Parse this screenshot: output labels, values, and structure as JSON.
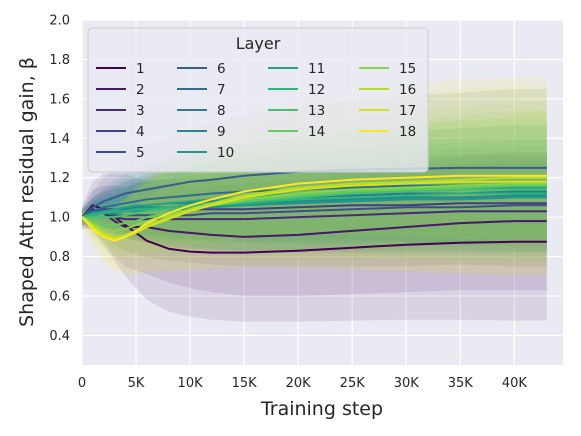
{
  "chart_data": {
    "type": "line",
    "xlabel": "Training step",
    "ylabel": "Shaped Attn residual gain, β",
    "xlim": [
      0,
      44500
    ],
    "ylim": [
      0.25,
      2.0
    ],
    "xticks": [
      0,
      5000,
      10000,
      15000,
      20000,
      25000,
      30000,
      35000,
      40000
    ],
    "xtick_labels": [
      "0",
      "5K",
      "10K",
      "15K",
      "20K",
      "25K",
      "30K",
      "35K",
      "40K"
    ],
    "yticks": [
      0.4,
      0.6,
      0.8,
      1.0,
      1.2,
      1.4,
      1.6,
      1.8,
      2.0
    ],
    "ytick_labels": [
      "0.4",
      "0.6",
      "0.8",
      "1.0",
      "1.2",
      "1.4",
      "1.6",
      "1.8",
      "2.0"
    ],
    "grid": true,
    "background": "#eaeaf2",
    "legend": {
      "title": "Layer",
      "placement": "top-left",
      "columns": 4
    },
    "x": [
      0,
      1000,
      2000,
      3000,
      4000,
      5000,
      6000,
      8000,
      10000,
      12000,
      15000,
      20000,
      25000,
      30000,
      35000,
      40000,
      43000
    ],
    "series": [
      {
        "name": "1",
        "color": "#440154",
        "values": [
          1.0,
          1.06,
          1.04,
          1.0,
          0.96,
          0.92,
          0.88,
          0.84,
          0.825,
          0.82,
          0.82,
          0.83,
          0.845,
          0.86,
          0.87,
          0.875,
          0.875
        ],
        "band": [
          0.06,
          0.12,
          0.18,
          0.22,
          0.26,
          0.28,
          0.3,
          0.32,
          0.33,
          0.34,
          0.35,
          0.36,
          0.37,
          0.38,
          0.39,
          0.4,
          0.4
        ]
      },
      {
        "name": "2",
        "color": "#481769",
        "values": [
          1.0,
          1.04,
          1.02,
          0.98,
          0.95,
          0.95,
          0.95,
          0.93,
          0.92,
          0.91,
          0.9,
          0.91,
          0.93,
          0.95,
          0.97,
          0.98,
          0.98
        ],
        "band": [
          0.05,
          0.1,
          0.14,
          0.18,
          0.2,
          0.22,
          0.24,
          0.26,
          0.28,
          0.29,
          0.3,
          0.31,
          0.32,
          0.33,
          0.34,
          0.35,
          0.35
        ]
      },
      {
        "name": "3",
        "color": "#472a7a",
        "values": [
          1.0,
          1.02,
          1.02,
          1.0,
          0.99,
          0.99,
          0.99,
          0.99,
          0.99,
          0.99,
          0.99,
          1.0,
          1.01,
          1.02,
          1.03,
          1.03,
          1.03
        ],
        "band": [
          0.04,
          0.08,
          0.11,
          0.14,
          0.16,
          0.18,
          0.19,
          0.21,
          0.22,
          0.23,
          0.24,
          0.25,
          0.26,
          0.27,
          0.27,
          0.28,
          0.28
        ]
      },
      {
        "name": "4",
        "color": "#433d84",
        "values": [
          1.0,
          1.03,
          1.04,
          1.04,
          1.04,
          1.04,
          1.04,
          1.04,
          1.04,
          1.04,
          1.04,
          1.05,
          1.06,
          1.06,
          1.07,
          1.07,
          1.07
        ],
        "band": [
          0.04,
          0.07,
          0.1,
          0.12,
          0.14,
          0.16,
          0.17,
          0.19,
          0.2,
          0.21,
          0.22,
          0.23,
          0.24,
          0.24,
          0.25,
          0.25,
          0.25
        ]
      },
      {
        "name": "5",
        "color": "#3d4e8a",
        "values": [
          1.0,
          1.02,
          1.02,
          1.01,
          1.01,
          1.01,
          1.01,
          1.01,
          1.01,
          1.02,
          1.02,
          1.03,
          1.04,
          1.05,
          1.05,
          1.06,
          1.06
        ],
        "band": [
          0.03,
          0.06,
          0.08,
          0.1,
          0.12,
          0.13,
          0.14,
          0.16,
          0.17,
          0.18,
          0.19,
          0.2,
          0.21,
          0.22,
          0.22,
          0.23,
          0.23
        ]
      },
      {
        "name": "6",
        "color": "#355e8d",
        "values": [
          1.0,
          1.05,
          1.08,
          1.1,
          1.12,
          1.13,
          1.14,
          1.16,
          1.18,
          1.19,
          1.21,
          1.23,
          1.24,
          1.245,
          1.25,
          1.25,
          1.25
        ],
        "band": [
          0.04,
          0.08,
          0.12,
          0.15,
          0.18,
          0.2,
          0.22,
          0.25,
          0.27,
          0.29,
          0.31,
          0.33,
          0.35,
          0.37,
          0.38,
          0.4,
          0.4
        ]
      },
      {
        "name": "7",
        "color": "#2e6d8e",
        "values": [
          1.0,
          1.03,
          1.05,
          1.06,
          1.07,
          1.08,
          1.09,
          1.1,
          1.11,
          1.12,
          1.13,
          1.14,
          1.15,
          1.16,
          1.16,
          1.17,
          1.17
        ],
        "band": [
          0.04,
          0.07,
          0.1,
          0.13,
          0.15,
          0.17,
          0.18,
          0.2,
          0.22,
          0.23,
          0.24,
          0.26,
          0.27,
          0.28,
          0.29,
          0.3,
          0.3
        ]
      },
      {
        "name": "8",
        "color": "#297b8e",
        "values": [
          1.0,
          1.02,
          1.03,
          1.04,
          1.05,
          1.05,
          1.06,
          1.07,
          1.07,
          1.08,
          1.09,
          1.1,
          1.11,
          1.12,
          1.12,
          1.13,
          1.13
        ],
        "band": [
          0.03,
          0.06,
          0.09,
          0.11,
          0.13,
          0.15,
          0.16,
          0.18,
          0.19,
          0.2,
          0.21,
          0.23,
          0.24,
          0.25,
          0.26,
          0.26,
          0.26
        ]
      },
      {
        "name": "9",
        "color": "#23898e",
        "values": [
          1.0,
          1.02,
          1.03,
          1.03,
          1.04,
          1.04,
          1.05,
          1.05,
          1.06,
          1.06,
          1.07,
          1.08,
          1.09,
          1.1,
          1.1,
          1.11,
          1.11
        ],
        "band": [
          0.03,
          0.06,
          0.08,
          0.1,
          0.12,
          0.14,
          0.15,
          0.17,
          0.18,
          0.19,
          0.2,
          0.22,
          0.23,
          0.24,
          0.25,
          0.25,
          0.25
        ]
      },
      {
        "name": "10",
        "color": "#1f978b",
        "values": [
          1.0,
          1.01,
          1.02,
          1.02,
          1.03,
          1.03,
          1.04,
          1.04,
          1.05,
          1.05,
          1.06,
          1.07,
          1.08,
          1.09,
          1.09,
          1.1,
          1.1
        ],
        "band": [
          0.03,
          0.05,
          0.07,
          0.09,
          0.11,
          0.12,
          0.14,
          0.15,
          0.16,
          0.17,
          0.19,
          0.2,
          0.21,
          0.22,
          0.23,
          0.23,
          0.23
        ]
      },
      {
        "name": "11",
        "color": "#21a585",
        "values": [
          1.0,
          1.02,
          1.03,
          1.04,
          1.05,
          1.06,
          1.06,
          1.07,
          1.08,
          1.09,
          1.1,
          1.12,
          1.13,
          1.14,
          1.15,
          1.15,
          1.15
        ],
        "band": [
          0.04,
          0.07,
          0.1,
          0.13,
          0.15,
          0.17,
          0.19,
          0.21,
          0.23,
          0.25,
          0.27,
          0.29,
          0.31,
          0.33,
          0.34,
          0.35,
          0.35
        ]
      },
      {
        "name": "12",
        "color": "#2eb37c",
        "values": [
          1.0,
          1.01,
          1.02,
          1.03,
          1.03,
          1.04,
          1.04,
          1.05,
          1.06,
          1.06,
          1.07,
          1.09,
          1.1,
          1.11,
          1.12,
          1.12,
          1.12
        ],
        "band": [
          0.03,
          0.06,
          0.09,
          0.11,
          0.13,
          0.15,
          0.16,
          0.18,
          0.2,
          0.21,
          0.23,
          0.25,
          0.26,
          0.27,
          0.28,
          0.29,
          0.29
        ]
      },
      {
        "name": "13",
        "color": "#46c06f",
        "values": [
          1.0,
          1.0,
          1.0,
          1.0,
          1.01,
          1.02,
          1.03,
          1.04,
          1.05,
          1.06,
          1.08,
          1.1,
          1.12,
          1.13,
          1.14,
          1.14,
          1.14
        ],
        "band": [
          0.03,
          0.06,
          0.08,
          0.1,
          0.12,
          0.14,
          0.16,
          0.18,
          0.2,
          0.22,
          0.24,
          0.26,
          0.28,
          0.3,
          0.31,
          0.32,
          0.32
        ]
      },
      {
        "name": "14",
        "color": "#65cb5e",
        "values": [
          1.0,
          0.98,
          0.96,
          0.96,
          0.97,
          0.98,
          1.0,
          1.02,
          1.04,
          1.06,
          1.08,
          1.11,
          1.13,
          1.14,
          1.15,
          1.16,
          1.16
        ],
        "band": [
          0.03,
          0.06,
          0.09,
          0.12,
          0.14,
          0.16,
          0.18,
          0.21,
          0.23,
          0.25,
          0.28,
          0.31,
          0.33,
          0.35,
          0.37,
          0.38,
          0.38
        ]
      },
      {
        "name": "15",
        "color": "#89d548",
        "values": [
          1.0,
          0.97,
          0.94,
          0.93,
          0.94,
          0.96,
          0.98,
          1.01,
          1.04,
          1.06,
          1.09,
          1.12,
          1.14,
          1.15,
          1.16,
          1.17,
          1.17
        ],
        "band": [
          0.03,
          0.07,
          0.1,
          0.13,
          0.16,
          0.18,
          0.2,
          0.23,
          0.26,
          0.28,
          0.31,
          0.34,
          0.36,
          0.38,
          0.4,
          0.41,
          0.41
        ]
      },
      {
        "name": "16",
        "color": "#b0dd2f",
        "values": [
          1.0,
          0.96,
          0.92,
          0.9,
          0.91,
          0.93,
          0.96,
          1.0,
          1.04,
          1.07,
          1.11,
          1.15,
          1.17,
          1.18,
          1.19,
          1.2,
          1.2
        ]
      },
      {
        "name": "17",
        "color": "#d8e219",
        "values": [
          1.0,
          0.95,
          0.91,
          0.89,
          0.9,
          0.92,
          0.95,
          0.99,
          1.03,
          1.06,
          1.1,
          1.14,
          1.16,
          1.17,
          1.18,
          1.18,
          1.18
        ],
        "band": [
          0.04,
          0.08,
          0.12,
          0.15,
          0.18,
          0.21,
          0.23,
          0.27,
          0.3,
          0.33,
          0.36,
          0.4,
          0.43,
          0.45,
          0.47,
          0.48,
          0.48
        ]
      },
      {
        "name": "18",
        "color": "#fde725",
        "values": [
          1.0,
          0.94,
          0.9,
          0.88,
          0.9,
          0.93,
          0.97,
          1.02,
          1.06,
          1.09,
          1.13,
          1.17,
          1.19,
          1.2,
          1.21,
          1.21,
          1.21
        ],
        "band": [
          0.04,
          0.09,
          0.13,
          0.16,
          0.19,
          0.22,
          0.25,
          0.29,
          0.32,
          0.35,
          0.38,
          0.42,
          0.45,
          0.47,
          0.49,
          0.5,
          0.5
        ]
      }
    ]
  }
}
